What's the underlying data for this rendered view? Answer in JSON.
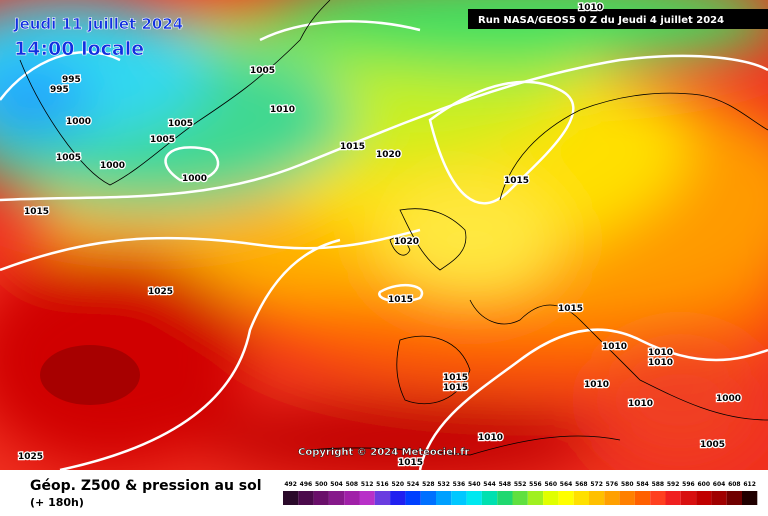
{
  "header": {
    "date": "Jeudi 11 juillet 2024",
    "time": "14:00 locale",
    "run": "Run NASA/GEOS5 0 Z du Jeudi 4 juillet 2024"
  },
  "isobar_labels": [
    "1010",
    "995",
    "995",
    "1005",
    "1000",
    "1005",
    "1005",
    "1010",
    "1015",
    "1020",
    "1005",
    "1000",
    "1000",
    "1015",
    "1015",
    "1020",
    "1025",
    "1015",
    "1015",
    "1010",
    "1010",
    "1010",
    "1015",
    "1015",
    "1010",
    "1000",
    "1010",
    "1010",
    "1005",
    "1015",
    "1025"
  ],
  "copyright": "Copyright © 2024 Meteociel.fr",
  "footer": {
    "title": "Géop. Z500 & pression au sol",
    "subtitle": "(+ 180h)"
  },
  "scale": [
    {
      "value": 492,
      "color": "#2a0a2a"
    },
    {
      "value": 496,
      "color": "#4b0a4b"
    },
    {
      "value": 500,
      "color": "#6a0f6a"
    },
    {
      "value": 504,
      "color": "#86198a"
    },
    {
      "value": 508,
      "color": "#a020a8"
    },
    {
      "value": 512,
      "color": "#b830c8"
    },
    {
      "value": 516,
      "color": "#6a3ce0"
    },
    {
      "value": 520,
      "color": "#2020f0"
    },
    {
      "value": 524,
      "color": "#0040ff"
    },
    {
      "value": 528,
      "color": "#0070ff"
    },
    {
      "value": 532,
      "color": "#00a0ff"
    },
    {
      "value": 536,
      "color": "#00c8ff"
    },
    {
      "value": 540,
      "color": "#00e8f0"
    },
    {
      "value": 544,
      "color": "#00e0b0"
    },
    {
      "value": 548,
      "color": "#20d870"
    },
    {
      "value": 552,
      "color": "#60e040"
    },
    {
      "value": 556,
      "color": "#a0f020"
    },
    {
      "value": 560,
      "color": "#e0ff00"
    },
    {
      "value": 564,
      "color": "#ffff00"
    },
    {
      "value": 568,
      "color": "#ffe000"
    },
    {
      "value": 572,
      "color": "#ffc000"
    },
    {
      "value": 576,
      "color": "#ffa000"
    },
    {
      "value": 580,
      "color": "#ff8000"
    },
    {
      "value": 584,
      "color": "#ff6000"
    },
    {
      "value": 588,
      "color": "#ff4020"
    },
    {
      "value": 592,
      "color": "#f02020"
    },
    {
      "value": 596,
      "color": "#d81010"
    },
    {
      "value": 600,
      "color": "#c00000"
    },
    {
      "value": 604,
      "color": "#a00000"
    },
    {
      "value": 608,
      "color": "#700000"
    },
    {
      "value": 612,
      "color": "#200000"
    }
  ]
}
